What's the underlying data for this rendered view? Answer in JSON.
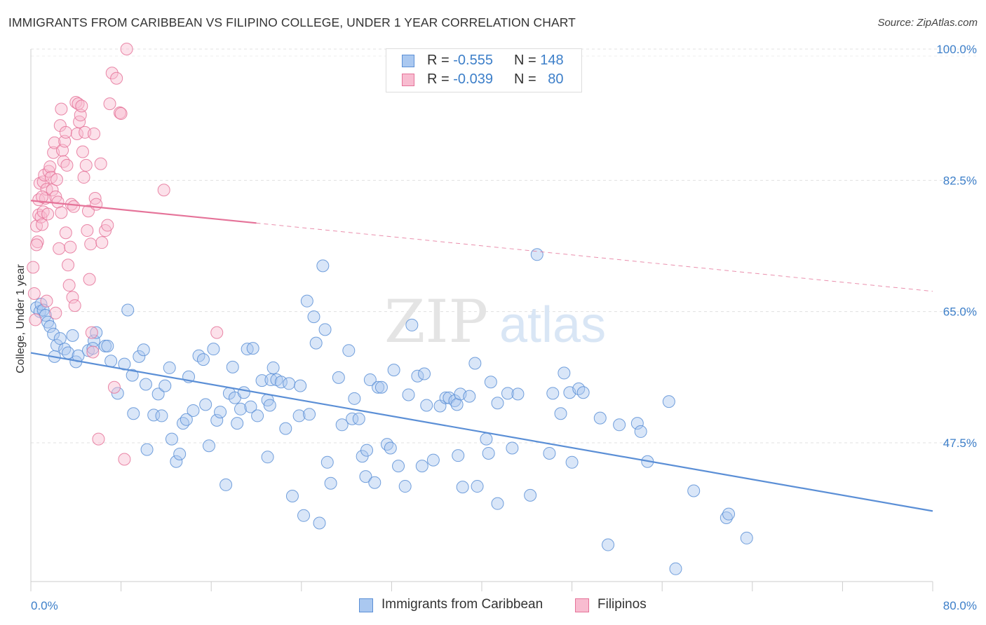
{
  "title": "IMMIGRANTS FROM CARIBBEAN VS FILIPINO COLLEGE, UNDER 1 YEAR CORRELATION CHART",
  "source": "Source: ZipAtlas.com",
  "watermark": {
    "zip": "ZIP",
    "atlas": "atlas"
  },
  "legend": {
    "r_label": "R =",
    "n_label": "N =",
    "rows": [
      {
        "r": "-0.555",
        "n": "148",
        "fill": "#aac8f0",
        "stroke": "#5b8fd6"
      },
      {
        "r": "-0.039",
        "n": "80",
        "fill": "#f8bcd0",
        "stroke": "#e57399"
      }
    ]
  },
  "bottom_legend": [
    "Immigrants from Caribbean",
    "Filipinos"
  ],
  "chart_data": {
    "type": "scatter",
    "xlabel": "",
    "ylabel": "College, Under 1 year",
    "xlim": [
      0,
      80
    ],
    "ylim": [
      29,
      100
    ],
    "x_tick_labels": [
      {
        "value": 0,
        "label": "0.0%"
      },
      {
        "value": 80,
        "label": "80.0%"
      }
    ],
    "y_tick_labels": [
      {
        "value": 100,
        "label": "100.0%"
      },
      {
        "value": 82.5,
        "label": "82.5%"
      },
      {
        "value": 65,
        "label": "65.0%"
      },
      {
        "value": 47.5,
        "label": "47.5%"
      }
    ],
    "x_minor_ticks": [
      0,
      8,
      16,
      24,
      32,
      40,
      48,
      56,
      64,
      72,
      80
    ],
    "grid": "horizontal dashed",
    "legend_position": "top-center",
    "series": [
      {
        "name": "Immigrants from Caribbean",
        "color": "#5b8fd6",
        "fill": "#aac8f0",
        "trend": {
          "x": [
            0,
            80
          ],
          "y": [
            59.5,
            38.4
          ],
          "style": "solid"
        },
        "points": [
          [
            0.5,
            65.5
          ],
          [
            0.8,
            65
          ],
          [
            0.9,
            66
          ],
          [
            1.1,
            65.2
          ],
          [
            1.3,
            64.5
          ],
          [
            1.5,
            63.6
          ],
          [
            1.7,
            63
          ],
          [
            2.0,
            62
          ],
          [
            2.1,
            59
          ],
          [
            2.3,
            60.5
          ],
          [
            2.6,
            61.4
          ],
          [
            3.0,
            60
          ],
          [
            3.3,
            59.5
          ],
          [
            3.7,
            61.8
          ],
          [
            4.0,
            58.3
          ],
          [
            4.2,
            59.1
          ],
          [
            5.1,
            59.8
          ],
          [
            5.6,
            61.1
          ],
          [
            5.5,
            60.1
          ],
          [
            5.8,
            62.2
          ],
          [
            6.6,
            60.4
          ],
          [
            6.8,
            60.4
          ],
          [
            7.1,
            58.4
          ],
          [
            7.7,
            54.1
          ],
          [
            8.3,
            58
          ],
          [
            8.6,
            65.2
          ],
          [
            9.0,
            56.5
          ],
          [
            9.1,
            51.4
          ],
          [
            9.6,
            59
          ],
          [
            10.0,
            59.9
          ],
          [
            10.2,
            55.3
          ],
          [
            10.3,
            46.6
          ],
          [
            10.9,
            51.2
          ],
          [
            11.3,
            54
          ],
          [
            11.6,
            51.1
          ],
          [
            11.9,
            55.1
          ],
          [
            12.3,
            57.5
          ],
          [
            12.5,
            48
          ],
          [
            12.9,
            45
          ],
          [
            13.2,
            46
          ],
          [
            13.5,
            50.1
          ],
          [
            13.8,
            50.6
          ],
          [
            14.0,
            56.3
          ],
          [
            14.4,
            51.8
          ],
          [
            14.9,
            59.1
          ],
          [
            15.3,
            58.6
          ],
          [
            15.5,
            52.6
          ],
          [
            15.8,
            47.1
          ],
          [
            16.2,
            60
          ],
          [
            16.5,
            50.5
          ],
          [
            16.8,
            51.6
          ],
          [
            17.3,
            41.9
          ],
          [
            17.6,
            54.1
          ],
          [
            17.9,
            57.6
          ],
          [
            18.1,
            53.5
          ],
          [
            18.3,
            50.1
          ],
          [
            18.6,
            52
          ],
          [
            18.9,
            54.2
          ],
          [
            19.2,
            60
          ],
          [
            19.5,
            52.3
          ],
          [
            19.7,
            60.1
          ],
          [
            20.1,
            51.1
          ],
          [
            20.5,
            55.8
          ],
          [
            21.0,
            53.2
          ],
          [
            21.0,
            45.6
          ],
          [
            21.2,
            52.5
          ],
          [
            21.3,
            55.9
          ],
          [
            21.5,
            57.5
          ],
          [
            21.8,
            55.9
          ],
          [
            22.2,
            55.6
          ],
          [
            22.6,
            49.4
          ],
          [
            22.9,
            55.4
          ],
          [
            23.2,
            40.4
          ],
          [
            23.8,
            51.1
          ],
          [
            23.9,
            55.1
          ],
          [
            24.2,
            37.8
          ],
          [
            24.5,
            66.4
          ],
          [
            24.7,
            51.3
          ],
          [
            25.1,
            64.3
          ],
          [
            25.3,
            60.8
          ],
          [
            25.6,
            36.8
          ],
          [
            25.9,
            71.1
          ],
          [
            26.1,
            62.6
          ],
          [
            26.3,
            44.9
          ],
          [
            26.6,
            42.1
          ],
          [
            27.3,
            56.2
          ],
          [
            27.6,
            49.9
          ],
          [
            28.2,
            59.8
          ],
          [
            28.5,
            50.7
          ],
          [
            28.7,
            53.4
          ],
          [
            29.1,
            50.7
          ],
          [
            29.4,
            45.7
          ],
          [
            29.7,
            43
          ],
          [
            29.8,
            46.5
          ],
          [
            30.1,
            55.9
          ],
          [
            30.5,
            42.2
          ],
          [
            30.8,
            54.9
          ],
          [
            31.1,
            54.9
          ],
          [
            31.6,
            47.3
          ],
          [
            31.9,
            46.8
          ],
          [
            32.2,
            57.2
          ],
          [
            32.6,
            44.4
          ],
          [
            33.2,
            41.7
          ],
          [
            33.5,
            53.9
          ],
          [
            33.8,
            63.2
          ],
          [
            34.3,
            56.4
          ],
          [
            34.7,
            44.4
          ],
          [
            34.9,
            56.7
          ],
          [
            35.1,
            52.5
          ],
          [
            35.7,
            45.2
          ],
          [
            36.3,
            52.4
          ],
          [
            36.8,
            53.5
          ],
          [
            37.1,
            53.5
          ],
          [
            37.6,
            53.1
          ],
          [
            37.8,
            52.6
          ],
          [
            37.9,
            45.8
          ],
          [
            38.1,
            54
          ],
          [
            38.3,
            41.6
          ],
          [
            38.9,
            53.7
          ],
          [
            39.4,
            58.1
          ],
          [
            39.6,
            41.7
          ],
          [
            40.4,
            48
          ],
          [
            40.6,
            46.1
          ],
          [
            40.8,
            55.6
          ],
          [
            41.4,
            39.4
          ],
          [
            41.4,
            52.8
          ],
          [
            42.3,
            54.1
          ],
          [
            42.7,
            46.8
          ],
          [
            43.2,
            54
          ],
          [
            44.3,
            40.5
          ],
          [
            44.9,
            72.6
          ],
          [
            46.0,
            46.1
          ],
          [
            46.3,
            54.1
          ],
          [
            47.0,
            51.4
          ],
          [
            47.3,
            56.8
          ],
          [
            47.8,
            54.2
          ],
          [
            48.0,
            44.9
          ],
          [
            48.6,
            54.7
          ],
          [
            49.0,
            54.2
          ],
          [
            50.5,
            50.8
          ],
          [
            51.2,
            33.9
          ],
          [
            52.2,
            49.9
          ],
          [
            53.8,
            50.1
          ],
          [
            54.1,
            49
          ],
          [
            54.7,
            45
          ],
          [
            56.6,
            53
          ],
          [
            58.8,
            41.1
          ],
          [
            61.7,
            37.5
          ],
          [
            61.9,
            38
          ],
          [
            63.5,
            34.8
          ],
          [
            57.2,
            30.7
          ]
        ]
      },
      {
        "name": "Filipinos",
        "color": "#e57399",
        "fill": "#f8bcd0",
        "trend": {
          "x": [
            0,
            20
          ],
          "y": [
            79.8,
            76.8
          ],
          "style": "solid",
          "dashed_extension": {
            "x": [
              20,
              80
            ],
            "y": [
              76.8,
              67.7
            ]
          }
        },
        "points": [
          [
            0.2,
            70.9
          ],
          [
            0.3,
            67.4
          ],
          [
            0.4,
            63.9
          ],
          [
            0.5,
            76.4
          ],
          [
            0.6,
            74.3
          ],
          [
            0.7,
            77.9
          ],
          [
            0.7,
            79.9
          ],
          [
            0.8,
            82.1
          ],
          [
            0.9,
            77.6
          ],
          [
            1.0,
            76.6
          ],
          [
            1.1,
            78.3
          ],
          [
            1.1,
            82.3
          ],
          [
            1.2,
            83.2
          ],
          [
            1.3,
            80.1
          ],
          [
            1.4,
            81.3
          ],
          [
            1.5,
            78
          ],
          [
            1.6,
            83.7
          ],
          [
            1.7,
            84.3
          ],
          [
            1.8,
            82.9
          ],
          [
            1.9,
            81.2
          ],
          [
            2.0,
            86.2
          ],
          [
            2.1,
            87.5
          ],
          [
            2.2,
            80.3
          ],
          [
            2.3,
            82.6
          ],
          [
            2.4,
            79.6
          ],
          [
            2.5,
            73.4
          ],
          [
            2.6,
            89.8
          ],
          [
            2.7,
            92
          ],
          [
            2.8,
            86.5
          ],
          [
            2.9,
            85
          ],
          [
            3.0,
            87.7
          ],
          [
            3.1,
            88.9
          ],
          [
            3.2,
            84.5
          ],
          [
            3.3,
            71.2
          ],
          [
            3.4,
            68.5
          ],
          [
            3.5,
            73.6
          ],
          [
            3.6,
            79.3
          ],
          [
            3.7,
            66.9
          ],
          [
            3.8,
            79
          ],
          [
            3.9,
            65.8
          ],
          [
            4.0,
            92.9
          ],
          [
            4.1,
            88.7
          ],
          [
            4.2,
            92.7
          ],
          [
            4.3,
            90.3
          ],
          [
            4.4,
            91.2
          ],
          [
            4.5,
            92.4
          ],
          [
            4.6,
            86.3
          ],
          [
            4.7,
            82.9
          ],
          [
            4.8,
            88.9
          ],
          [
            4.9,
            84.5
          ],
          [
            5.0,
            75.8
          ],
          [
            5.1,
            78.4
          ],
          [
            5.2,
            69.3
          ],
          [
            5.3,
            74
          ],
          [
            5.4,
            62.2
          ],
          [
            5.5,
            59.6
          ],
          [
            5.6,
            88.7
          ],
          [
            5.7,
            80.1
          ],
          [
            5.8,
            79.3
          ],
          [
            6.0,
            48
          ],
          [
            6.2,
            84.7
          ],
          [
            6.3,
            74.2
          ],
          [
            6.6,
            75.8
          ],
          [
            6.8,
            76.5
          ],
          [
            7.0,
            92.7
          ],
          [
            7.2,
            96.8
          ],
          [
            7.4,
            54.9
          ],
          [
            7.6,
            96.1
          ],
          [
            7.9,
            91.5
          ],
          [
            8.0,
            91.4
          ],
          [
            8.3,
            45.3
          ],
          [
            8.5,
            100
          ],
          [
            11.8,
            81.2
          ],
          [
            16.5,
            62.2
          ],
          [
            1.4,
            66.4
          ],
          [
            2.2,
            64.8
          ],
          [
            0.5,
            73.9
          ],
          [
            1.0,
            80.3
          ],
          [
            2.7,
            78.2
          ],
          [
            3.1,
            75.5
          ]
        ]
      }
    ]
  }
}
